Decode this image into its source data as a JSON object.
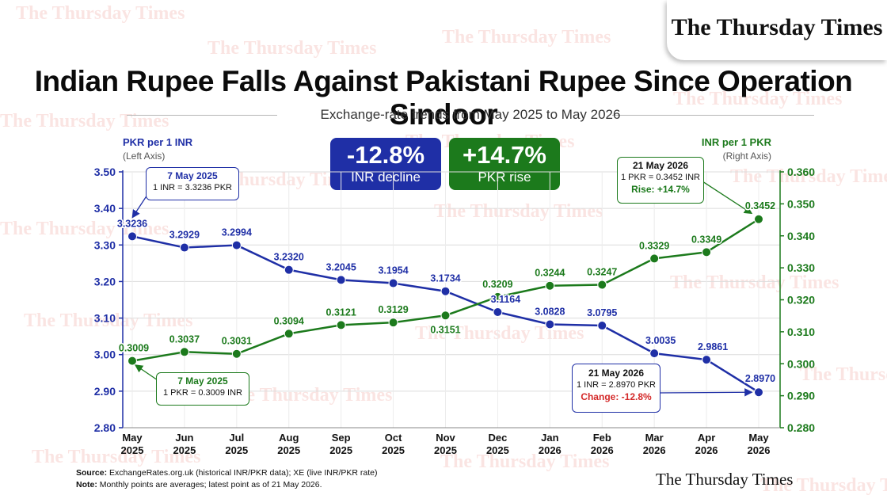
{
  "brand": "The Thursday Times",
  "watermark_text": "The Thursday Times",
  "title": "Indian Rupee Falls Against Pakistani Rupee Since Operation Sindoor",
  "subtitle": "Exchange-rate trends from May 2025 to May 2026",
  "stats": [
    {
      "value": "-12.8%",
      "label": "INR decline",
      "color": "#1f2fa6"
    },
    {
      "value": "+14.7%",
      "label": "PKR rise",
      "color": "#1c7a1c"
    }
  ],
  "axes": {
    "left_title": "PKR per 1 INR",
    "left_sub": "(Left Axis)",
    "right_title": "INR per 1 PKR",
    "right_sub": "(Right Axis)"
  },
  "callouts": {
    "inr_start": {
      "date": "7 May 2025",
      "line1": "1 INR = 3.3236 PKR"
    },
    "pkr_start": {
      "date": "7 May 2025",
      "line1": "1 PKR = 0.3009 INR"
    },
    "pkr_end": {
      "date": "21 May 2026",
      "line1": "1 PKR = 0.3452 INR",
      "line2": "Rise: +14.7%"
    },
    "inr_end": {
      "date": "21 May 2026",
      "line1": "1 INR = 2.8970 PKR",
      "line2": "Change: -12.8%"
    }
  },
  "footer": {
    "source_label": "Source:",
    "source_text": "ExchangeRates.org.uk (historical INR/PKR data); XE (live INR/PKR rate)",
    "note_label": "Note:",
    "note_text": "Monthly points are averages; latest point as of 21 May 2026."
  },
  "colors": {
    "inr": "#1f2fa6",
    "pkr": "#1c7a1c",
    "change_red": "#d42a2a"
  },
  "chart_data": {
    "type": "line",
    "categories": [
      "May\n2025",
      "Jun\n2025",
      "Jul\n2025",
      "Aug\n2025",
      "Sep\n2025",
      "Oct\n2025",
      "Nov\n2025",
      "Dec\n2025",
      "Jan\n2026",
      "Feb\n2026",
      "Mar\n2026",
      "Apr\n2026",
      "May\n2026"
    ],
    "series": [
      {
        "name": "PKR per 1 INR",
        "axis": "left",
        "color": "#1f2fa6",
        "values": [
          3.3236,
          3.2929,
          3.2994,
          3.232,
          3.2045,
          3.1954,
          3.1734,
          3.1164,
          3.0828,
          3.0795,
          3.0035,
          2.9861,
          2.897
        ],
        "labels": [
          "3.3236",
          "3.2929",
          "3.2994",
          "3.2320",
          "3.2045",
          "3.1954",
          "3.1734",
          "3.1164",
          "3.0828",
          "3.0795",
          "3.0035",
          "2.9861",
          "2.8970"
        ]
      },
      {
        "name": "INR per 1 PKR",
        "axis": "right",
        "color": "#1c7a1c",
        "values": [
          0.3009,
          0.3037,
          0.3031,
          0.3094,
          0.3121,
          0.3129,
          0.3151,
          0.3209,
          0.3244,
          0.3247,
          0.3329,
          0.3349,
          0.3452
        ],
        "labels": [
          "0.3009",
          "0.3037",
          "0.3031",
          "0.3094",
          "0.3121",
          "0.3129",
          "0.3151",
          "0.3209",
          "0.3244",
          "0.3247",
          "0.3329",
          "0.3349",
          "0.3452"
        ]
      }
    ],
    "left_axis": {
      "min": 2.8,
      "max": 3.5,
      "ticks": [
        "2.80",
        "2.90",
        "3.00",
        "3.10",
        "3.20",
        "3.30",
        "3.40",
        "3.50"
      ]
    },
    "right_axis": {
      "min": 0.28,
      "max": 0.36,
      "ticks": [
        "0.280",
        "0.290",
        "0.300",
        "0.310",
        "0.320",
        "0.330",
        "0.340",
        "0.350",
        "0.360"
      ]
    },
    "grid": true
  }
}
